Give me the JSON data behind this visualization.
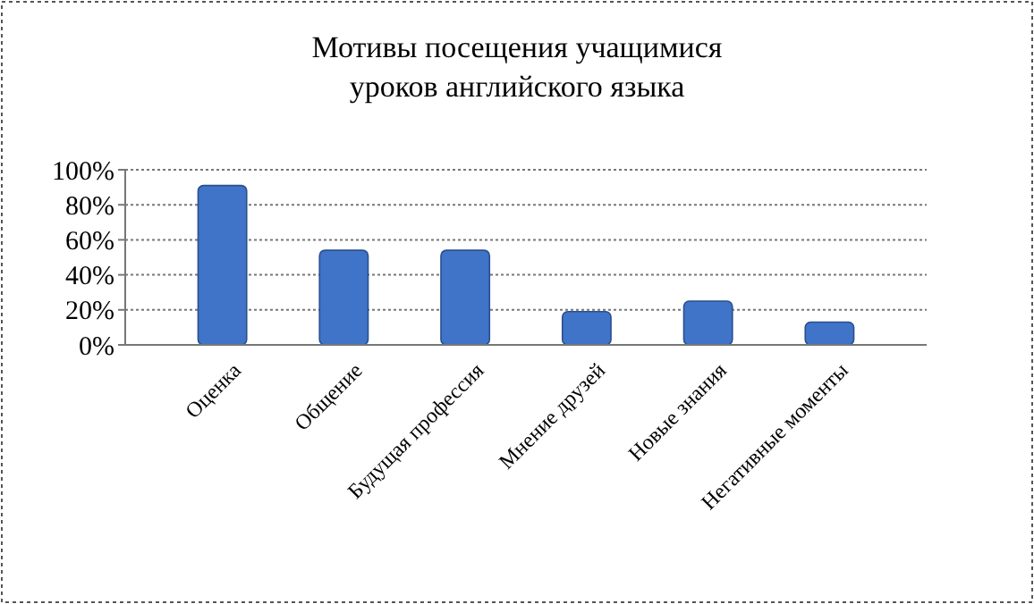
{
  "chart_data": {
    "type": "bar",
    "title": "Мотивы посещения учащимися уроков английского языка",
    "categories": [
      "Оценка",
      "Общение",
      "Будущая профессия",
      "Мнение друзей",
      "Новые знания",
      "Негативные моменты"
    ],
    "values": [
      91,
      54,
      54,
      19,
      25,
      13
    ],
    "color": "#3f74c8",
    "ylim": [
      0,
      100
    ],
    "yticks": [
      {
        "value": 0,
        "label": "0%"
      },
      {
        "value": 20,
        "label": "20%"
      },
      {
        "value": 40,
        "label": "40%"
      },
      {
        "value": 60,
        "label": "60%"
      },
      {
        "value": 80,
        "label": "80%"
      },
      {
        "value": 100,
        "label": "100%"
      }
    ],
    "grid": true
  }
}
